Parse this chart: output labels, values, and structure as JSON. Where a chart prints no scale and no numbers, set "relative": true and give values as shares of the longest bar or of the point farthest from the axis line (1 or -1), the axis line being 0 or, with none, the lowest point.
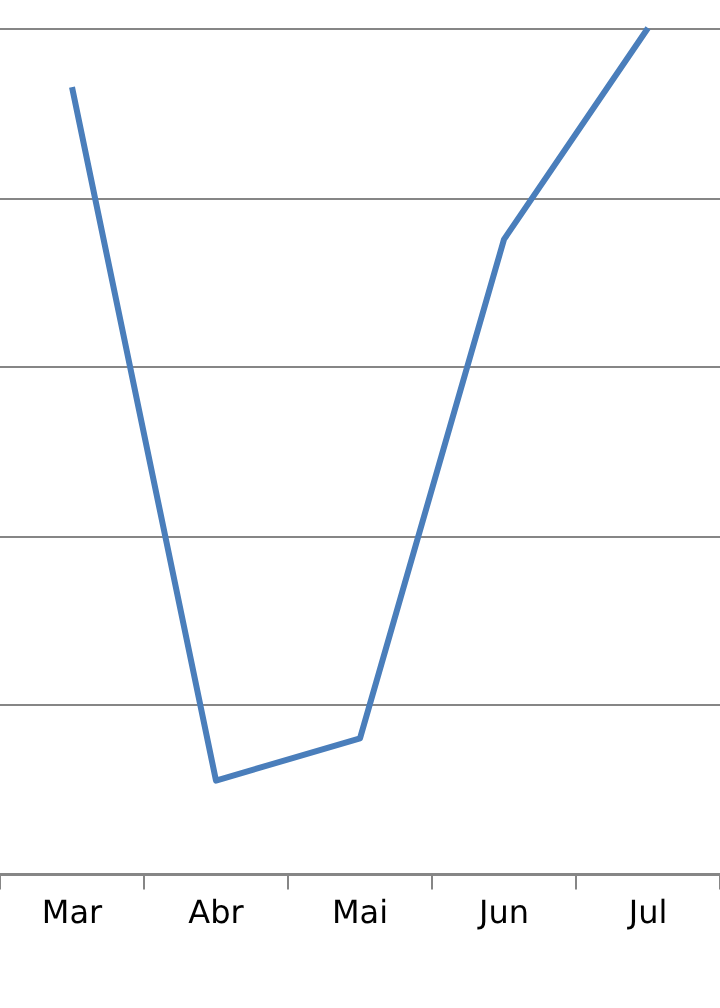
{
  "chart_data": {
    "type": "line",
    "categories": [
      "Mar",
      "Abr",
      "Mai",
      "Jun",
      "Jul"
    ],
    "series": [
      {
        "color": "#4a7ebb",
        "values": [
          0.93,
          0.11,
          0.16,
          0.75,
          1
        ]
      }
    ],
    "relative": true,
    "grid": "y",
    "legend": false,
    "marker": "none",
    "line_style": "solid"
  }
}
